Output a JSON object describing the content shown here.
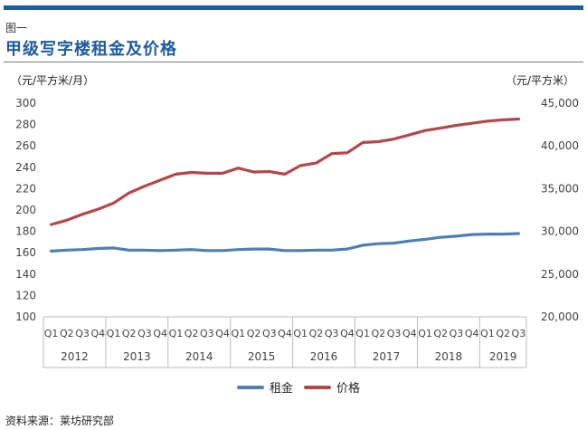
{
  "figure_label": "图一",
  "title": "甲级写字楼租金及价格",
  "source_text": "资料来源：莱坊研究部",
  "chart_data": {
    "type": "line",
    "title": "甲级写字楼租金及价格",
    "y_left": {
      "label": "（元/平方米/月）",
      "ylim": [
        100,
        300
      ],
      "ticks": [
        "100",
        "120",
        "140",
        "160",
        "180",
        "200",
        "220",
        "240",
        "260",
        "280",
        "300"
      ]
    },
    "y_right": {
      "label": "（元/平方米）",
      "ylim": [
        20000,
        45000
      ],
      "ticks": [
        "20,000",
        "25,000",
        "30,000",
        "35,000",
        "40,000",
        "45,000"
      ]
    },
    "quarters": [
      "Q1",
      "Q2",
      "Q3",
      "Q4",
      "Q1",
      "Q2",
      "Q3",
      "Q4",
      "Q1",
      "Q2",
      "Q3",
      "Q4",
      "Q1",
      "Q2",
      "Q3",
      "Q4",
      "Q1",
      "Q2",
      "Q3",
      "Q4",
      "Q1",
      "Q2",
      "Q3",
      "Q4",
      "Q1",
      "Q2",
      "Q3",
      "Q4",
      "Q1",
      "Q2",
      "Q3"
    ],
    "years": [
      {
        "label": "2012",
        "quarters": 4
      },
      {
        "label": "2013",
        "quarters": 4
      },
      {
        "label": "2014",
        "quarters": 4
      },
      {
        "label": "2015",
        "quarters": 4
      },
      {
        "label": "2016",
        "quarters": 4
      },
      {
        "label": "2017",
        "quarters": 4
      },
      {
        "label": "2018",
        "quarters": 4
      },
      {
        "label": "2019",
        "quarters": 3
      }
    ],
    "grid": false,
    "legend_position": "bottom",
    "series": [
      {
        "name": "租金",
        "axis": "left",
        "color": "#4f7fb2",
        "values": [
          161.5,
          162.5,
          163,
          164,
          164.5,
          162.5,
          162.5,
          162,
          162.5,
          163,
          162,
          162,
          163,
          163.5,
          163.5,
          162,
          162,
          162.5,
          162.5,
          163.5,
          167,
          168.5,
          169,
          171,
          172.5,
          174.5,
          175.5,
          177,
          177.5,
          177.5,
          178
        ]
      },
      {
        "name": "价格",
        "axis": "right",
        "color": "#b3484a",
        "values": [
          30800,
          31300,
          32000,
          32600,
          33300,
          34500,
          35300,
          36000,
          36700,
          36900,
          36800,
          36800,
          37400,
          36950,
          37000,
          36700,
          37700,
          38000,
          39100,
          39200,
          40400,
          40500,
          40800,
          41300,
          41800,
          42100,
          42400,
          42650,
          42900,
          43050,
          43150
        ]
      }
    ]
  }
}
